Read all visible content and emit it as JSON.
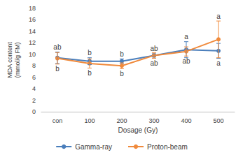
{
  "chart_data": {
    "type": "line",
    "x_label": "Dosage (Gy)",
    "y_label": "MDA content\n(mmol/g FM)",
    "categories": [
      "con",
      "100",
      "200",
      "300",
      "400",
      "500"
    ],
    "series": [
      {
        "name": "Gamma-ray",
        "color": "#4a7ebb",
        "marker": "circle",
        "values": [
          9.4,
          8.8,
          8.8,
          9.8,
          10.8,
          10.6
        ],
        "errors": [
          1.0,
          0.6,
          0.4,
          0.3,
          1.4,
          1.3
        ],
        "significance": [
          "ab",
          "b",
          "b",
          "ab",
          "a",
          "a"
        ]
      },
      {
        "name": "Proton-beam",
        "color": "#f08a3c",
        "marker": "circle",
        "values": [
          9.3,
          8.4,
          8.0,
          9.8,
          10.5,
          12.6
        ],
        "errors": [
          1.0,
          0.8,
          0.5,
          0.5,
          0.8,
          3.2
        ],
        "significance": [
          "b",
          "b",
          "b",
          "ab",
          "ab",
          "a"
        ]
      }
    ],
    "ylim": [
      0,
      18
    ],
    "yticks": [
      0,
      2,
      4,
      6,
      8,
      10,
      12,
      14,
      16,
      18
    ],
    "grid": false,
    "legend": "bottom"
  }
}
